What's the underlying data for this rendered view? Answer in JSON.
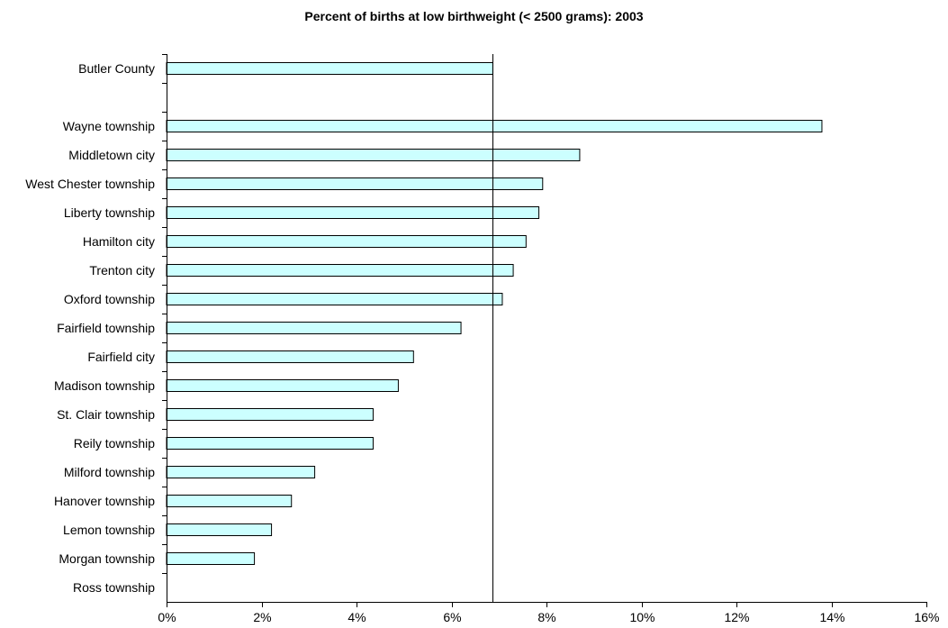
{
  "chart_data": {
    "type": "bar",
    "orientation": "horizontal",
    "title": "Percent of births at low birthweight (< 2500 grams): 2003",
    "xlabel": "",
    "ylabel": "",
    "xlim": [
      0,
      16
    ],
    "x_ticks": [
      "0%",
      "2%",
      "4%",
      "6%",
      "8%",
      "10%",
      "12%",
      "14%",
      "16%"
    ],
    "grid": false,
    "legend": "none",
    "bar_color": "#ccffff",
    "reference_line": {
      "value": 6.87,
      "color": "#000000"
    },
    "categories": [
      "Butler County",
      "",
      "Wayne township",
      "Middletown city",
      "West Chester township",
      "Liberty township",
      "Hamilton city",
      "Trenton city",
      "Oxford township",
      "Fairfield township",
      "Fairfield city",
      "Madison township",
      "St. Clair township",
      "Reily township",
      "Milford township",
      "Hanover township",
      "Lemon township",
      "Morgan township",
      "Ross township"
    ],
    "values": [
      6.87,
      null,
      13.8,
      8.7,
      7.92,
      7.84,
      7.57,
      7.3,
      7.07,
      6.2,
      5.2,
      4.88,
      4.35,
      4.35,
      3.12,
      2.63,
      2.21,
      1.85,
      0
    ]
  }
}
